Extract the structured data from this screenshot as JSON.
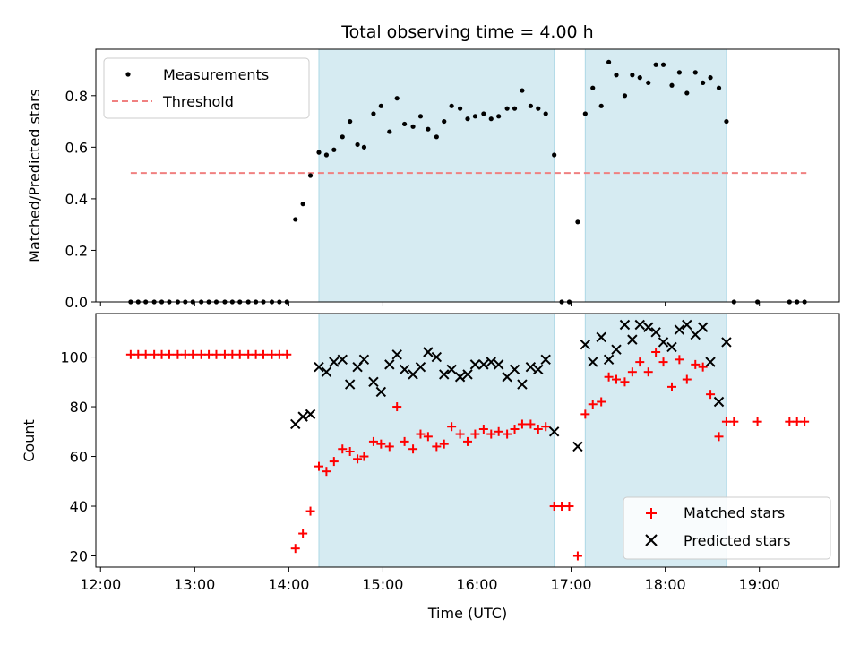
{
  "chart_data": [
    {
      "type": "scatter",
      "title": "Total observing time = 4.00 h",
      "xlabel": "",
      "ylabel": "Matched/Predicted stars",
      "xlim": [
        11.95,
        19.85
      ],
      "ylim": [
        0,
        0.98
      ],
      "yticks": [
        0.0,
        0.2,
        0.4,
        0.6,
        0.8
      ],
      "ytick_labels": [
        "0.0",
        "0.2",
        "0.4",
        "0.6",
        "0.8"
      ],
      "xticks": [
        12,
        13,
        14,
        15,
        16,
        17,
        18,
        19
      ],
      "observing_windows": [
        [
          14.32,
          16.82
        ],
        [
          17.15,
          18.65
        ]
      ],
      "window_color": "#add8e6",
      "legend_position": "upper-left",
      "series": [
        {
          "name": "Measurements",
          "kind": "points",
          "color": "#000000",
          "x": [
            12.32,
            12.4,
            12.48,
            12.57,
            12.65,
            12.73,
            12.82,
            12.9,
            12.98,
            13.07,
            13.15,
            13.23,
            13.32,
            13.4,
            13.48,
            13.57,
            13.65,
            13.73,
            13.82,
            13.9,
            13.98,
            14.07,
            14.15,
            14.23,
            14.32,
            14.4,
            14.48,
            14.57,
            14.65,
            14.73,
            14.8,
            14.9,
            14.98,
            15.07,
            15.15,
            15.23,
            15.32,
            15.4,
            15.48,
            15.57,
            15.65,
            15.73,
            15.82,
            15.9,
            15.98,
            16.07,
            16.15,
            16.23,
            16.32,
            16.4,
            16.48,
            16.57,
            16.65,
            16.73,
            16.82,
            16.9,
            16.98,
            17.07,
            17.15,
            17.23,
            17.32,
            17.4,
            17.48,
            17.57,
            17.65,
            17.73,
            17.82,
            17.9,
            17.98,
            18.07,
            18.15,
            18.23,
            18.32,
            18.4,
            18.48,
            18.57,
            18.65,
            18.73,
            18.98,
            19.32,
            19.4,
            19.48
          ],
          "y": [
            0,
            0,
            0,
            0,
            0,
            0,
            0,
            0,
            0,
            0,
            0,
            0,
            0,
            0,
            0,
            0,
            0,
            0,
            0,
            0,
            0,
            0.32,
            0.38,
            0.49,
            0.58,
            0.57,
            0.59,
            0.64,
            0.7,
            0.61,
            0.6,
            0.73,
            0.76,
            0.66,
            0.79,
            0.69,
            0.68,
            0.72,
            0.67,
            0.64,
            0.7,
            0.76,
            0.75,
            0.71,
            0.72,
            0.73,
            0.71,
            0.72,
            0.75,
            0.75,
            0.82,
            0.76,
            0.75,
            0.73,
            0.57,
            0,
            0,
            0.31,
            0.73,
            0.83,
            0.76,
            0.93,
            0.88,
            0.8,
            0.88,
            0.87,
            0.85,
            0.92,
            0.92,
            0.84,
            0.89,
            0.81,
            0.89,
            0.85,
            0.87,
            0.83,
            0.7,
            0,
            0,
            0,
            0,
            0
          ]
        },
        {
          "name": "Threshold",
          "kind": "dashed-line",
          "color": "#f08080",
          "x": [
            12.32,
            19.5
          ],
          "y": [
            0.5,
            0.5
          ]
        }
      ]
    },
    {
      "type": "scatter",
      "title": "",
      "xlabel": "Time (UTC)",
      "ylabel": "Count",
      "xlim": [
        11.95,
        19.85
      ],
      "ylim": [
        15.5,
        117.5
      ],
      "yticks": [
        20,
        40,
        60,
        80,
        100
      ],
      "ytick_labels": [
        "20",
        "40",
        "60",
        "80",
        "100"
      ],
      "xticks": [
        12,
        13,
        14,
        15,
        16,
        17,
        18,
        19
      ],
      "xtick_labels": [
        "12:00",
        "13:00",
        "14:00",
        "15:00",
        "16:00",
        "17:00",
        "18:00",
        "19:00"
      ],
      "observing_windows": [
        [
          14.32,
          16.82
        ],
        [
          17.15,
          18.65
        ]
      ],
      "window_color": "#add8e6",
      "legend_position": "lower-right",
      "series": [
        {
          "name": "Matched stars",
          "kind": "plus",
          "color": "#ff0000",
          "x": [
            12.32,
            12.4,
            12.48,
            12.57,
            12.65,
            12.73,
            12.82,
            12.9,
            12.98,
            13.07,
            13.15,
            13.23,
            13.32,
            13.4,
            13.48,
            13.57,
            13.65,
            13.73,
            13.82,
            13.9,
            13.98,
            14.07,
            14.15,
            14.23,
            14.32,
            14.4,
            14.48,
            14.57,
            14.65,
            14.73,
            14.8,
            14.9,
            14.98,
            15.07,
            15.15,
            15.23,
            15.32,
            15.4,
            15.48,
            15.57,
            15.65,
            15.73,
            15.82,
            15.9,
            15.98,
            16.07,
            16.15,
            16.23,
            16.32,
            16.4,
            16.48,
            16.57,
            16.65,
            16.73,
            16.82,
            16.9,
            16.98,
            17.07,
            17.15,
            17.23,
            17.32,
            17.4,
            17.48,
            17.57,
            17.65,
            17.73,
            17.82,
            17.9,
            17.98,
            18.07,
            18.15,
            18.23,
            18.32,
            18.4,
            18.48,
            18.57,
            18.65,
            18.73,
            18.98,
            19.32,
            19.4,
            19.48
          ],
          "y": [
            101,
            101,
            101,
            101,
            101,
            101,
            101,
            101,
            101,
            101,
            101,
            101,
            101,
            101,
            101,
            101,
            101,
            101,
            101,
            101,
            101,
            23,
            29,
            38,
            56,
            54,
            58,
            63,
            62,
            59,
            60,
            66,
            65,
            64,
            80,
            66,
            63,
            69,
            68,
            64,
            65,
            72,
            69,
            66,
            69,
            71,
            69,
            70,
            69,
            71,
            73,
            73,
            71,
            72,
            40,
            40,
            40,
            20,
            77,
            81,
            82,
            92,
            91,
            90,
            94,
            98,
            94,
            102,
            98,
            88,
            99,
            91,
            97,
            96,
            85,
            68,
            74,
            74,
            74,
            74,
            74,
            74
          ]
        },
        {
          "name": "Predicted stars",
          "kind": "x",
          "color": "#000000",
          "x": [
            14.07,
            14.15,
            14.23,
            14.32,
            14.4,
            14.48,
            14.57,
            14.65,
            14.73,
            14.8,
            14.9,
            14.98,
            15.07,
            15.15,
            15.23,
            15.32,
            15.4,
            15.48,
            15.57,
            15.65,
            15.73,
            15.82,
            15.9,
            15.98,
            16.07,
            16.15,
            16.23,
            16.32,
            16.4,
            16.48,
            16.57,
            16.65,
            16.73,
            16.82,
            17.07,
            17.15,
            17.23,
            17.32,
            17.4,
            17.48,
            17.57,
            17.65,
            17.73,
            17.82,
            17.9,
            17.98,
            18.07,
            18.15,
            18.23,
            18.32,
            18.4,
            18.48,
            18.57,
            18.65
          ],
          "y": [
            73,
            76,
            77,
            96,
            94,
            98,
            99,
            89,
            96,
            99,
            90,
            86,
            97,
            101,
            95,
            93,
            96,
            102,
            100,
            93,
            95,
            92,
            93,
            97,
            97,
            98,
            97,
            92,
            95,
            89,
            96,
            95,
            99,
            70,
            64,
            105,
            98,
            108,
            99,
            103,
            113,
            107,
            113,
            112,
            110,
            106,
            104,
            111,
            113,
            109,
            112,
            98,
            82,
            106
          ]
        }
      ]
    }
  ]
}
